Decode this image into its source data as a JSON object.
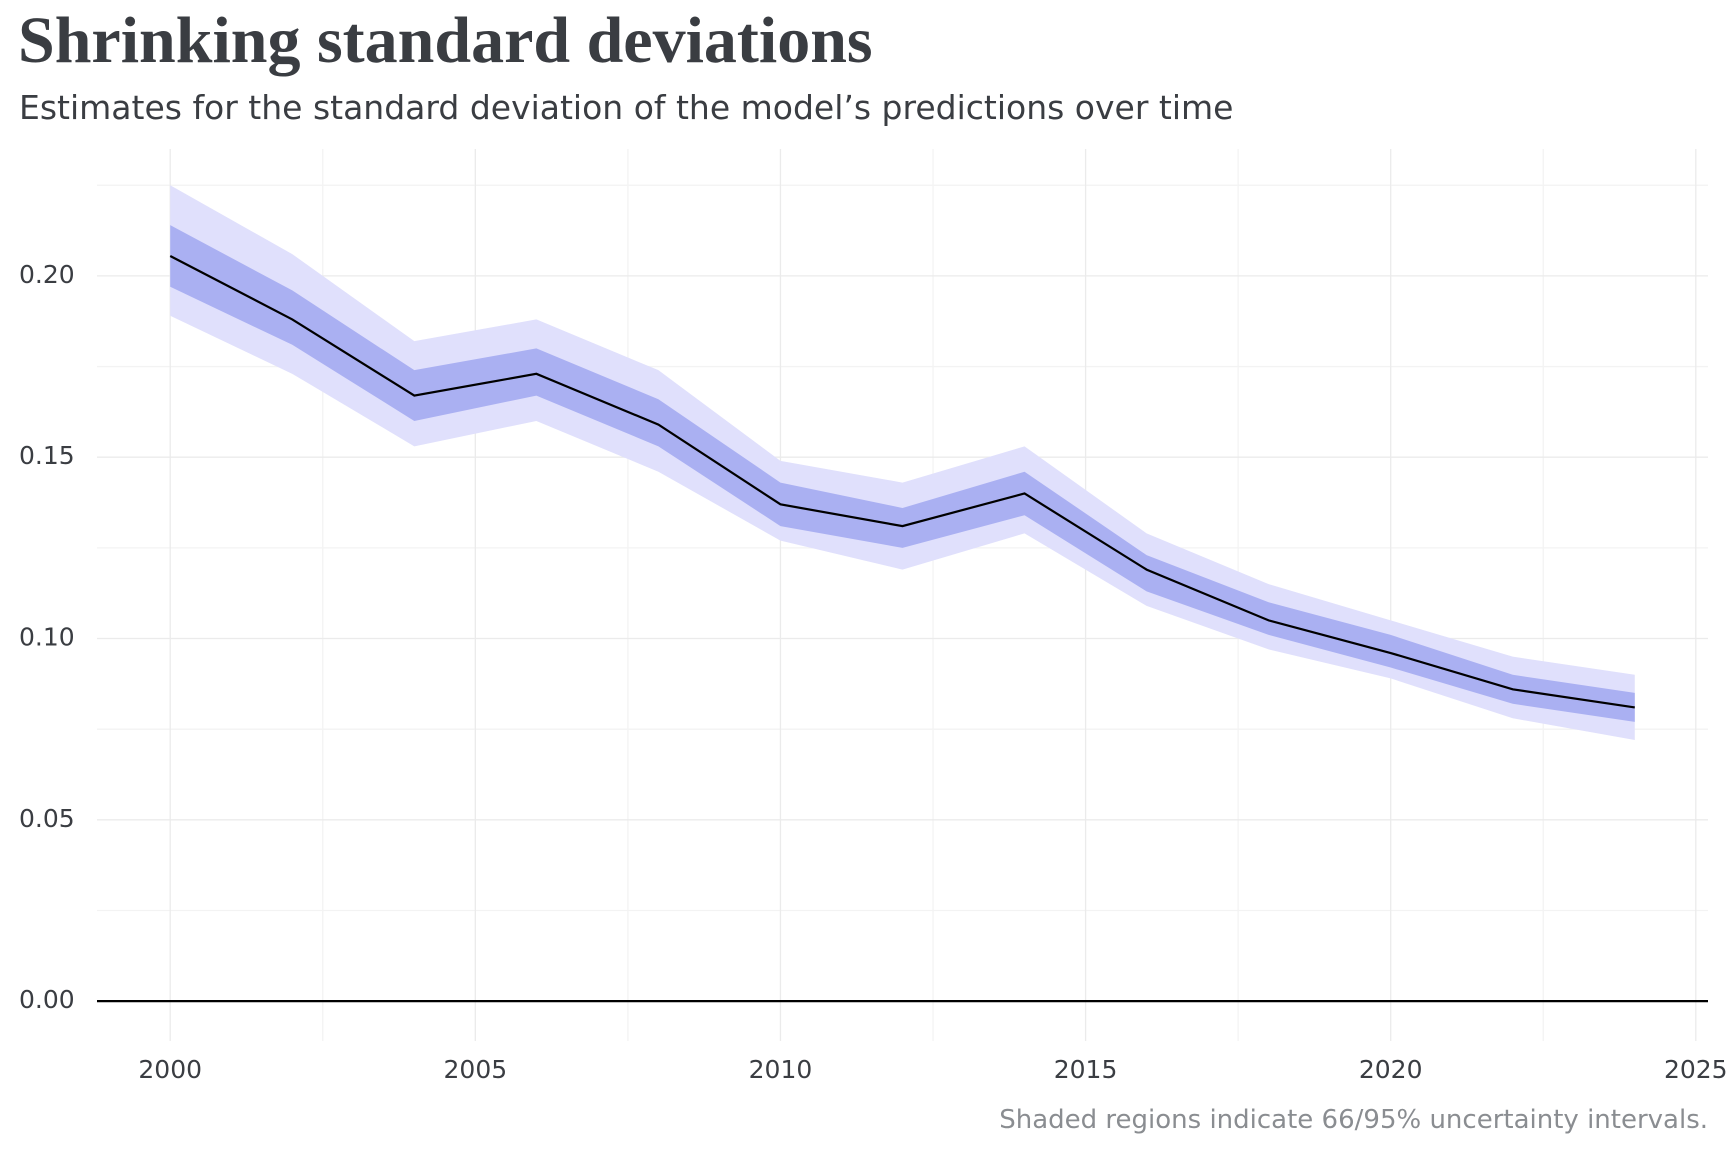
{
  "chart_data": {
    "type": "line",
    "title": "Shrinking standard deviations",
    "subtitle": "Estimates for the standard deviation of the model’s predictions over time",
    "note": "Shaded regions indicate 66/95% uncertainty intervals.",
    "x": [
      2000,
      2002,
      2004,
      2006,
      2008,
      2010,
      2012,
      2014,
      2016,
      2018,
      2020,
      2022,
      2024
    ],
    "line": {
      "color": "#000000",
      "values": [
        0.2055,
        0.188,
        0.167,
        0.173,
        0.159,
        0.137,
        0.131,
        0.14,
        0.119,
        0.105,
        0.096,
        0.086,
        0.081
      ]
    },
    "band_66": {
      "color": "#aab0f2",
      "upper": [
        0.214,
        0.196,
        0.174,
        0.18,
        0.166,
        0.143,
        0.136,
        0.146,
        0.123,
        0.11,
        0.101,
        0.09,
        0.085
      ],
      "lower": [
        0.197,
        0.181,
        0.16,
        0.167,
        0.153,
        0.131,
        0.125,
        0.134,
        0.113,
        0.101,
        0.092,
        0.082,
        0.077
      ]
    },
    "band_95": {
      "color": "#e0e0fc",
      "upper": [
        0.225,
        0.206,
        0.182,
        0.188,
        0.174,
        0.149,
        0.143,
        0.153,
        0.129,
        0.115,
        0.105,
        0.095,
        0.09
      ],
      "lower": [
        0.189,
        0.173,
        0.153,
        0.16,
        0.146,
        0.127,
        0.119,
        0.129,
        0.109,
        0.097,
        0.089,
        0.078,
        0.072
      ]
    },
    "xlim": [
      1998.8,
      2025.2
    ],
    "xticks": [
      2000,
      2005,
      2010,
      2015,
      2020,
      2025
    ],
    "ylim": [
      -0.011,
      0.235
    ],
    "yticks": [
      {
        "value": 0,
        "label": "0.00"
      },
      {
        "value": 0.05,
        "label": "0.05"
      },
      {
        "value": 0.1,
        "label": "0.10"
      },
      {
        "value": 0.15,
        "label": "0.15"
      },
      {
        "value": 0.2,
        "label": "0.20"
      }
    ],
    "grid": true
  }
}
